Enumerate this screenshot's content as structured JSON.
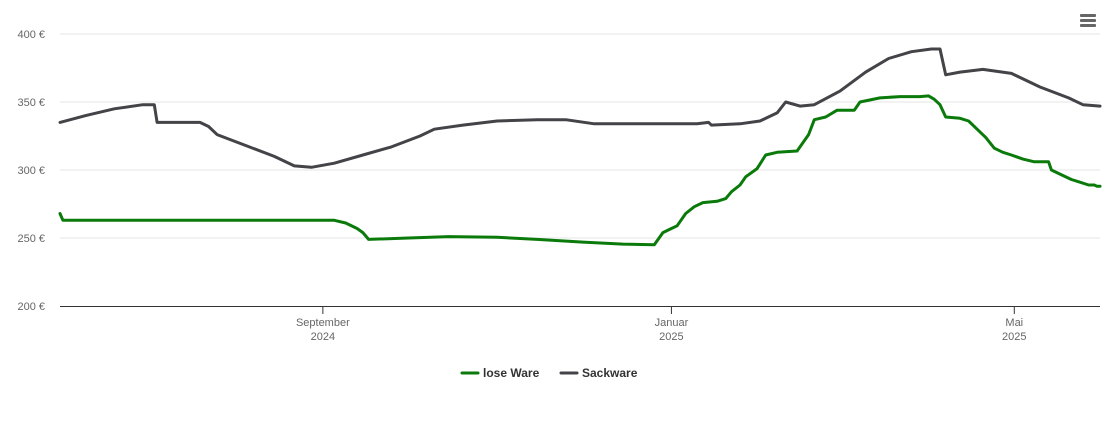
{
  "menu_icon": "hamburger-menu-icon",
  "chart_data": {
    "type": "line",
    "title": "",
    "xlabel": "",
    "ylabel": "",
    "ylim": [
      200,
      400
    ],
    "y_ticks": [
      200,
      250,
      300,
      350,
      400
    ],
    "y_tick_labels": [
      "200 €",
      "250 €",
      "300 €",
      "350 €",
      "400 €"
    ],
    "xlim": [
      "2024-06-01",
      "2025-05-31"
    ],
    "x_ticks": [
      {
        "date": "2024-09-01",
        "month": "September",
        "year": "2024"
      },
      {
        "date": "2025-01-01",
        "month": "Januar",
        "year": "2025"
      },
      {
        "date": "2025-05-01",
        "month": "Mai",
        "year": "2025"
      }
    ],
    "grid": true,
    "legend_position": "bottom-center",
    "series": [
      {
        "name": "lose Ware",
        "color": "#0a7a0a",
        "points": [
          [
            "2024-06-01",
            268
          ],
          [
            "2024-06-02",
            263
          ],
          [
            "2024-07-01",
            263
          ],
          [
            "2024-08-01",
            263
          ],
          [
            "2024-09-01",
            263
          ],
          [
            "2024-09-05",
            263
          ],
          [
            "2024-09-09",
            261
          ],
          [
            "2024-09-13",
            257
          ],
          [
            "2024-09-15",
            254
          ],
          [
            "2024-09-17",
            249
          ],
          [
            "2024-10-01",
            250
          ],
          [
            "2024-10-15",
            251
          ],
          [
            "2024-11-01",
            250.5
          ],
          [
            "2024-11-15",
            249
          ],
          [
            "2024-12-01",
            247
          ],
          [
            "2024-12-15",
            245.5
          ],
          [
            "2024-12-26",
            245
          ],
          [
            "2024-12-29",
            254
          ],
          [
            "2025-01-01",
            257
          ],
          [
            "2025-01-03",
            259
          ],
          [
            "2025-01-06",
            268
          ],
          [
            "2025-01-09",
            273
          ],
          [
            "2025-01-12",
            276
          ],
          [
            "2025-01-17",
            277
          ],
          [
            "2025-01-20",
            279
          ],
          [
            "2025-01-22",
            284
          ],
          [
            "2025-01-25",
            289
          ],
          [
            "2025-01-27",
            295
          ],
          [
            "2025-01-31",
            301
          ],
          [
            "2025-02-03",
            311
          ],
          [
            "2025-02-07",
            313
          ],
          [
            "2025-02-14",
            314
          ],
          [
            "2025-02-18",
            326
          ],
          [
            "2025-02-20",
            337
          ],
          [
            "2025-02-24",
            339
          ],
          [
            "2025-02-28",
            344
          ],
          [
            "2025-03-03",
            344
          ],
          [
            "2025-03-06",
            344
          ],
          [
            "2025-03-08",
            350
          ],
          [
            "2025-03-15",
            353
          ],
          [
            "2025-03-22",
            354
          ],
          [
            "2025-03-29",
            354
          ],
          [
            "2025-04-01",
            354.5
          ],
          [
            "2025-04-03",
            352
          ],
          [
            "2025-04-05",
            348
          ],
          [
            "2025-04-07",
            339
          ],
          [
            "2025-04-12",
            338
          ],
          [
            "2025-04-15",
            336
          ],
          [
            "2025-04-18",
            330
          ],
          [
            "2025-04-21",
            324
          ],
          [
            "2025-04-24",
            316
          ],
          [
            "2025-04-27",
            313
          ],
          [
            "2025-04-30",
            311
          ],
          [
            "2025-05-04",
            308
          ],
          [
            "2025-05-08",
            306
          ],
          [
            "2025-05-11",
            306
          ],
          [
            "2025-05-13",
            306
          ],
          [
            "2025-05-14",
            300
          ],
          [
            "2025-05-17",
            297
          ],
          [
            "2025-05-21",
            293
          ],
          [
            "2025-05-24",
            291
          ],
          [
            "2025-05-27",
            289
          ],
          [
            "2025-05-29",
            289
          ],
          [
            "2025-05-30",
            288
          ],
          [
            "2025-05-31",
            288
          ]
        ]
      },
      {
        "name": "Sackware",
        "color": "#434348",
        "points": [
          [
            "2024-06-01",
            335
          ],
          [
            "2024-06-10",
            340
          ],
          [
            "2024-06-20",
            345
          ],
          [
            "2024-06-30",
            348
          ],
          [
            "2024-07-04",
            348
          ],
          [
            "2024-07-05",
            335
          ],
          [
            "2024-07-10",
            335
          ],
          [
            "2024-07-20",
            335
          ],
          [
            "2024-07-23",
            332
          ],
          [
            "2024-07-26",
            326
          ],
          [
            "2024-08-05",
            318
          ],
          [
            "2024-08-15",
            310
          ],
          [
            "2024-08-22",
            303
          ],
          [
            "2024-08-28",
            302
          ],
          [
            "2024-09-05",
            305
          ],
          [
            "2024-09-15",
            311
          ],
          [
            "2024-09-25",
            317
          ],
          [
            "2024-10-05",
            325
          ],
          [
            "2024-10-10",
            330
          ],
          [
            "2024-10-20",
            333
          ],
          [
            "2024-11-01",
            336
          ],
          [
            "2024-11-15",
            337
          ],
          [
            "2024-11-25",
            337
          ],
          [
            "2024-12-05",
            334
          ],
          [
            "2024-12-15",
            334
          ],
          [
            "2025-01-01",
            334
          ],
          [
            "2025-01-05",
            334
          ],
          [
            "2025-01-10",
            334
          ],
          [
            "2025-01-14",
            335
          ],
          [
            "2025-01-15",
            333
          ],
          [
            "2025-01-25",
            334
          ],
          [
            "2025-02-01",
            336
          ],
          [
            "2025-02-07",
            342
          ],
          [
            "2025-02-10",
            350
          ],
          [
            "2025-02-15",
            347
          ],
          [
            "2025-02-20",
            348
          ],
          [
            "2025-03-01",
            358
          ],
          [
            "2025-03-10",
            372
          ],
          [
            "2025-03-18",
            382
          ],
          [
            "2025-03-26",
            387
          ],
          [
            "2025-04-02",
            389
          ],
          [
            "2025-04-05",
            389
          ],
          [
            "2025-04-07",
            370
          ],
          [
            "2025-04-12",
            372
          ],
          [
            "2025-04-20",
            374
          ],
          [
            "2025-04-30",
            371
          ],
          [
            "2025-05-10",
            361
          ],
          [
            "2025-05-20",
            353
          ],
          [
            "2025-05-25",
            348
          ],
          [
            "2025-05-31",
            347
          ]
        ]
      }
    ]
  }
}
